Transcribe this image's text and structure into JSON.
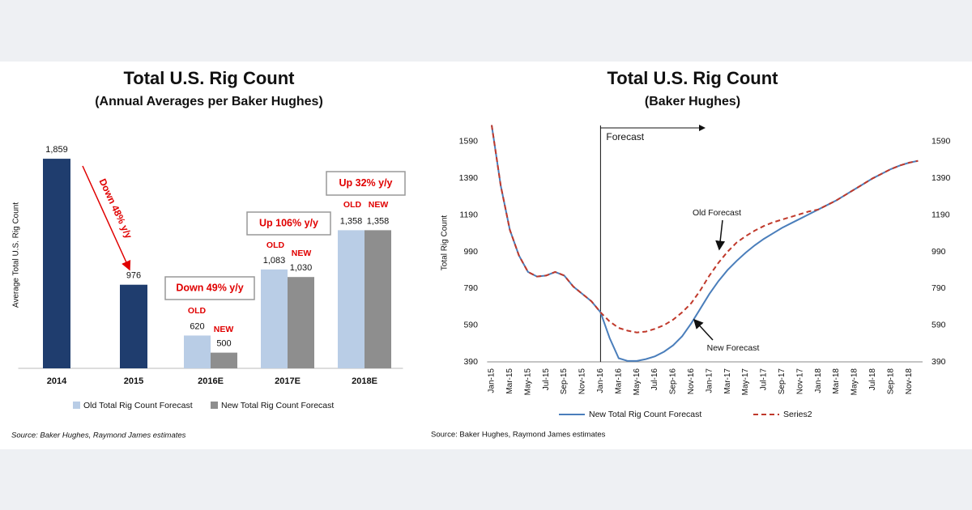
{
  "chart_data": [
    {
      "type": "bar",
      "title": "Total U.S. Rig Count",
      "subtitle": "(Annual Averages per Baker Hughes)",
      "ylabel": "Average Total U.S. Rig Count",
      "categories": [
        "2014",
        "2015",
        "2016E",
        "2017E",
        "2018E"
      ],
      "values": [
        1859,
        976,
        null,
        null,
        null
      ],
      "value_labels": [
        "1,859",
        "976",
        null,
        null,
        null
      ],
      "color": "#1f3d6e",
      "series": [
        {
          "name": "Old Total Rig Count Forecast",
          "color": "#b9cde6",
          "values": [
            null,
            null,
            620,
            1083,
            1358
          ],
          "value_labels": [
            null,
            null,
            "620",
            "1,083",
            "1,358"
          ]
        },
        {
          "name": "New Total Rig Count Forecast",
          "color": "#8e8e8e",
          "values": [
            null,
            null,
            500,
            1030,
            1358
          ],
          "value_labels": [
            null,
            null,
            "500",
            "1,030",
            "1,358"
          ]
        }
      ],
      "ylim": [
        390,
        1990
      ],
      "annotations": [
        "Down 48% y/y",
        "Down 49% y/y",
        "Up 106% y/y",
        "Up 32% y/y"
      ],
      "old_label": "OLD",
      "new_label": "NEW",
      "legend": "bottom",
      "source": "Source: Baker Hughes, Raymond James estimates"
    },
    {
      "type": "line",
      "title": "Total U.S. Rig Count",
      "subtitle": "(Baker Hughes)",
      "ylabel": "Total Rig Count",
      "categories": [
        "Jan-15",
        null,
        "Mar-15",
        null,
        "May-15",
        null,
        "Jul-15",
        null,
        "Sep-15",
        null,
        "Nov-15",
        null,
        "Jan-16",
        null,
        "Mar-16",
        null,
        "May-16",
        null,
        "Jul-16",
        null,
        "Sep-16",
        null,
        "Nov-16",
        null,
        "Jan-17",
        null,
        "Mar-17",
        null,
        "May-17",
        null,
        "Jul-17",
        null,
        "Sep-17",
        null,
        "Nov-17",
        null,
        "Jan-18",
        null,
        "Mar-18",
        null,
        "May-18",
        null,
        "Jul-18",
        null,
        "Sep-18",
        null,
        "Nov-18",
        null
      ],
      "series": [
        {
          "name": "New Total Rig Count Forecast",
          "color": "#4a7ebb",
          "line_style": "solid",
          "values": [
            1680,
            1350,
            1110,
            970,
            880,
            855,
            860,
            880,
            860,
            800,
            760,
            720,
            660,
            520,
            410,
            395,
            395,
            405,
            420,
            445,
            480,
            530,
            600,
            680,
            760,
            830,
            890,
            940,
            985,
            1025,
            1060,
            1090,
            1120,
            1145,
            1170,
            1195,
            1220,
            1245,
            1270,
            1300,
            1330,
            1360,
            1390,
            1415,
            1440,
            1460,
            1475,
            1485
          ]
        },
        {
          "name": "Series2",
          "color": "#c0392b",
          "line_style": "dashed",
          "values": [
            1680,
            1350,
            1110,
            970,
            880,
            855,
            860,
            880,
            860,
            800,
            760,
            720,
            660,
            610,
            575,
            560,
            550,
            555,
            570,
            590,
            620,
            660,
            710,
            780,
            860,
            930,
            990,
            1040,
            1075,
            1105,
            1130,
            1150,
            1165,
            1180,
            1195,
            1210,
            1220,
            1245,
            1270,
            1300,
            1330,
            1360,
            1390,
            1415,
            1440,
            1460,
            1475,
            1485
          ]
        }
      ],
      "ylim": [
        390,
        1700
      ],
      "yticks": [
        390,
        590,
        790,
        990,
        1190,
        1390,
        1590
      ],
      "y2lim": [
        390,
        1700
      ],
      "y2ticks": [
        390,
        590,
        790,
        990,
        1190,
        1390,
        1590
      ],
      "annotations": [
        "Forecast",
        "Old Forecast",
        "New Forecast"
      ],
      "legend": "bottom",
      "source": "Source: Baker Hughes, Raymond James estimates"
    }
  ]
}
